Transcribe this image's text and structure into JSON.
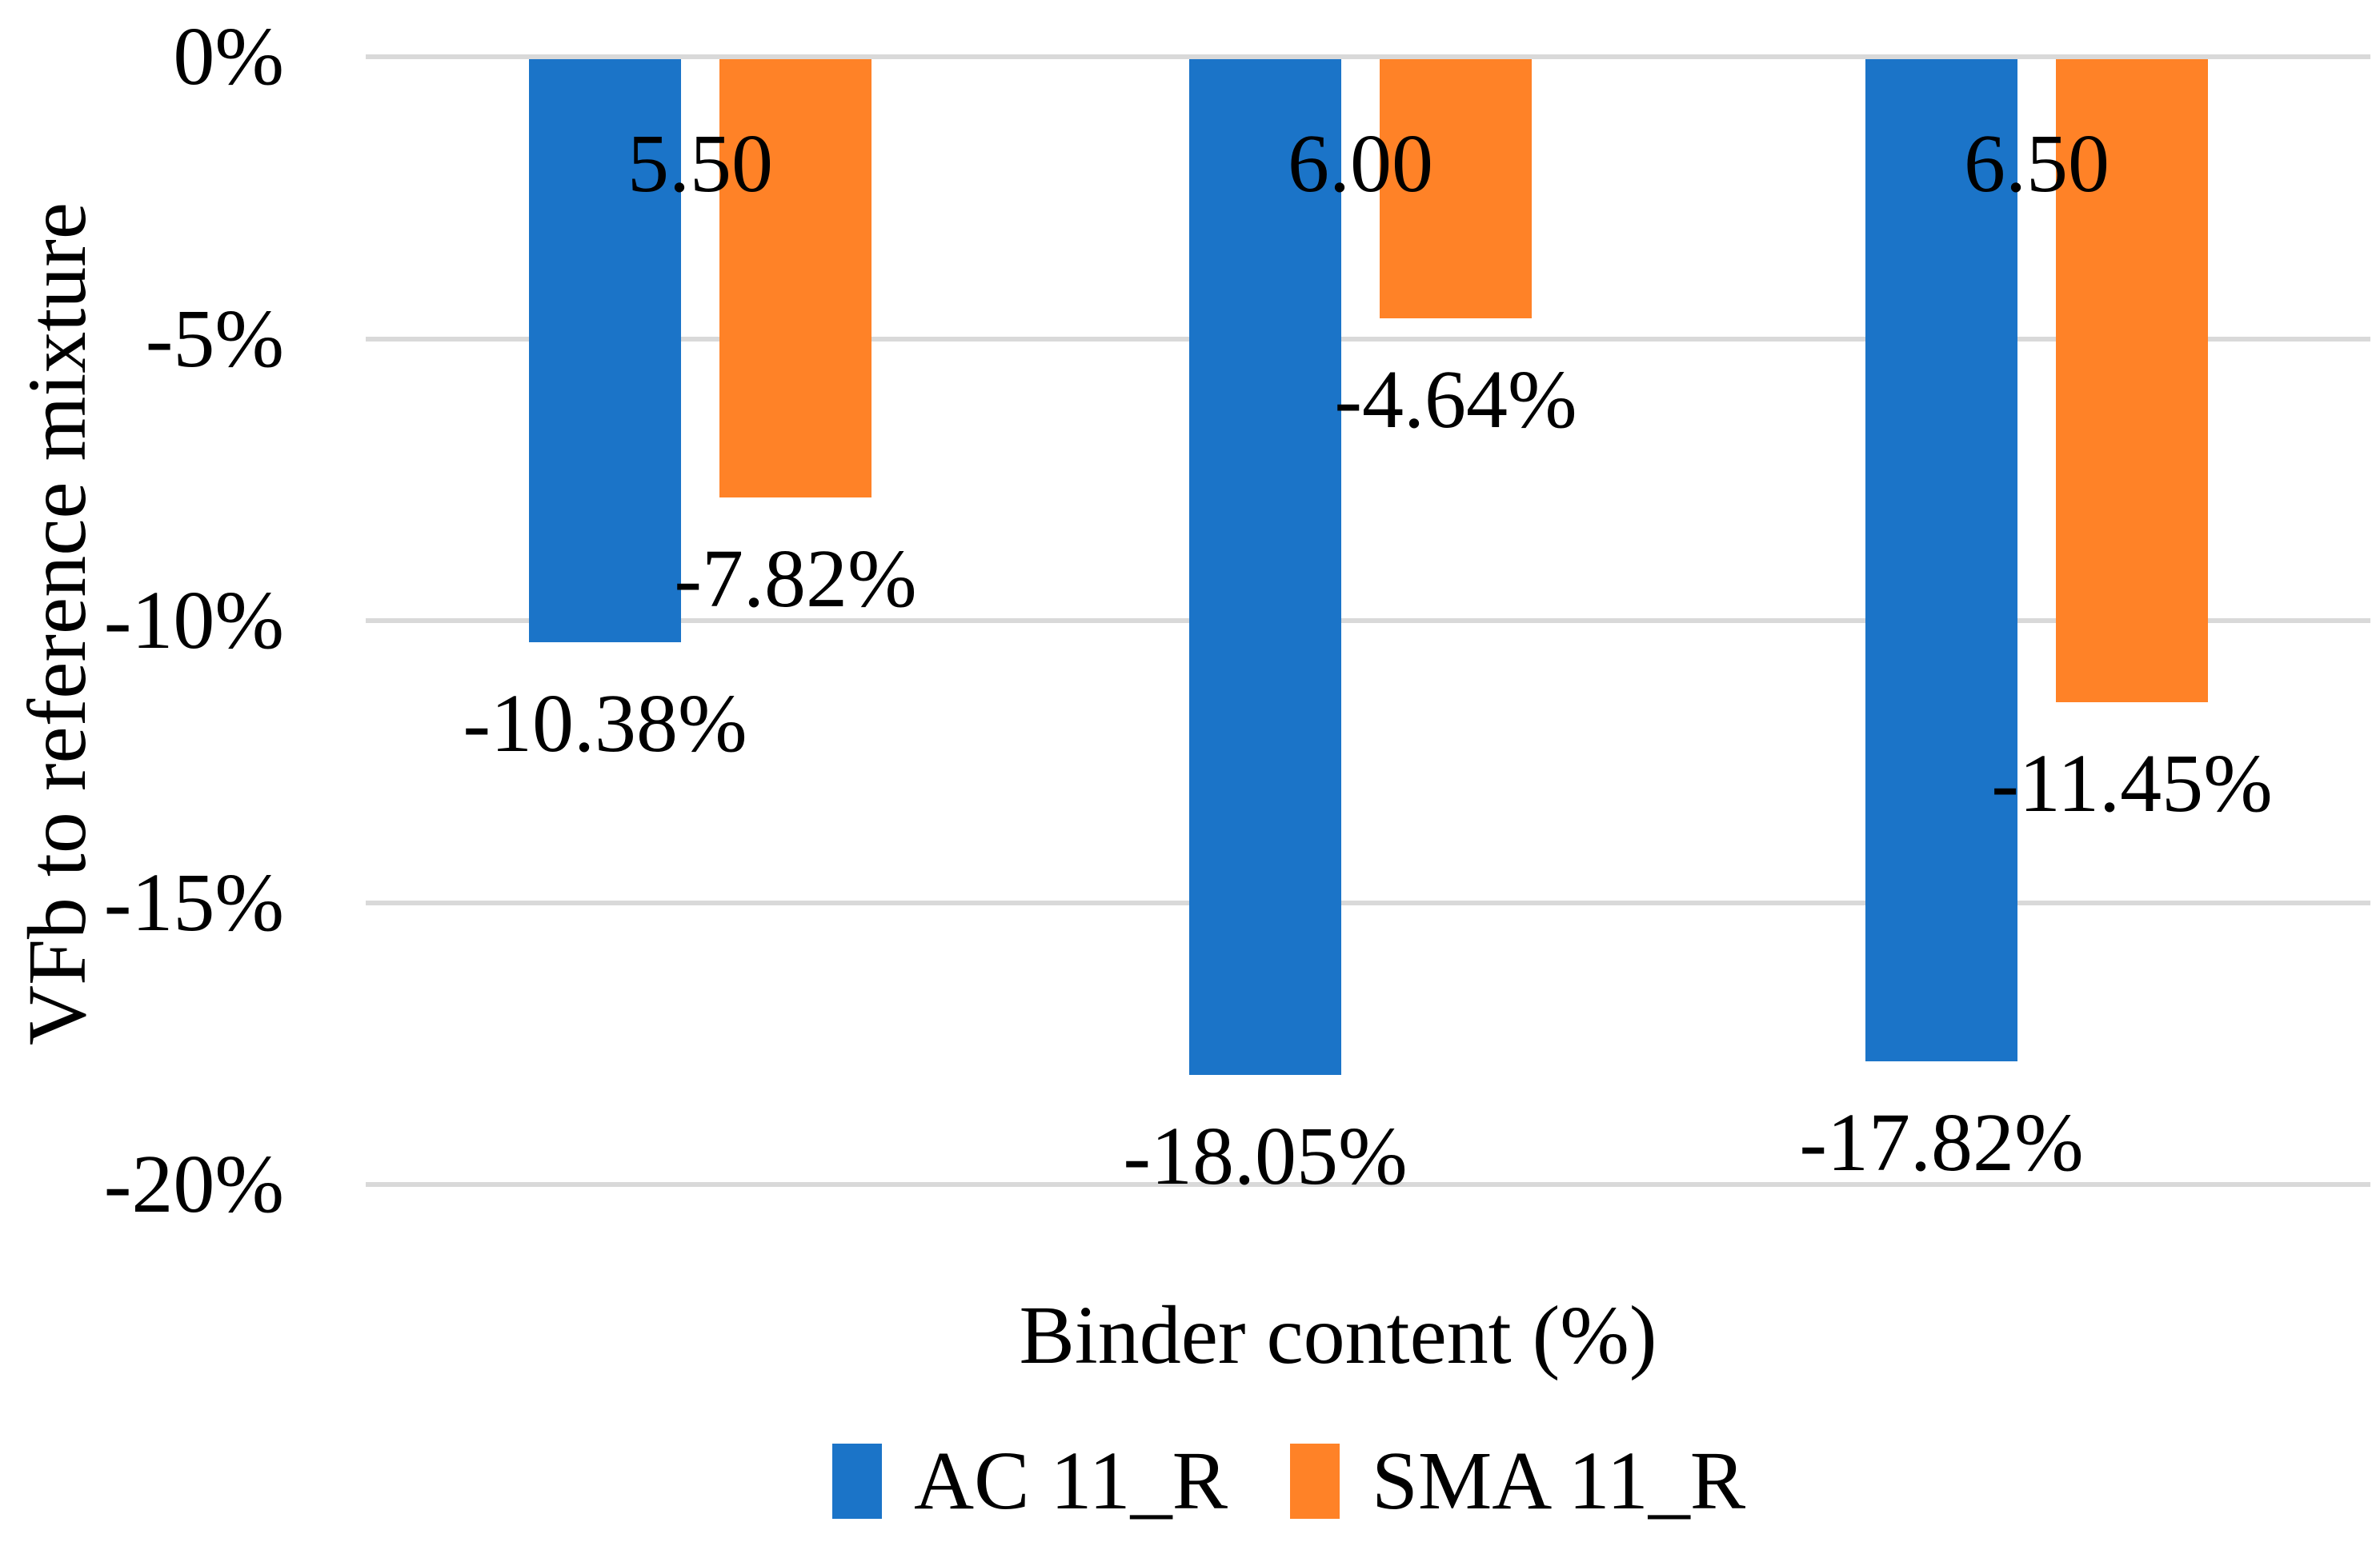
{
  "chart_data": {
    "type": "bar",
    "orientation": "vertical",
    "title": "",
    "xlabel": "Binder content (%)",
    "ylabel": "VFb to reference mixture",
    "categories": [
      "5.50",
      "6.00",
      "6.50"
    ],
    "series": [
      {
        "name": "AC 11_R",
        "color": "#1B74C8",
        "values": [
          -10.38,
          -18.05,
          -17.82
        ],
        "data_labels": [
          "-10.38%",
          "-18.05%",
          "-17.82%"
        ]
      },
      {
        "name": "SMA 11_R",
        "color": "#FF8227",
        "values": [
          -7.82,
          -4.64,
          -11.45
        ],
        "data_labels": [
          "-7.82%",
          "-4.64%",
          "-11.45%"
        ]
      }
    ],
    "y_ticks": [
      {
        "value": 0,
        "label": "0%"
      },
      {
        "value": -5,
        "label": "-5%"
      },
      {
        "value": -10,
        "label": "-10%"
      },
      {
        "value": -15,
        "label": "-15%"
      },
      {
        "value": -20,
        "label": "-20%"
      }
    ],
    "ylim": [
      -20,
      0
    ],
    "grid": "horizontal",
    "gridline_color": "#D9D9D9",
    "legend_position": "bottom",
    "background_color": "#FFFFFF",
    "text_color": "#000000"
  }
}
